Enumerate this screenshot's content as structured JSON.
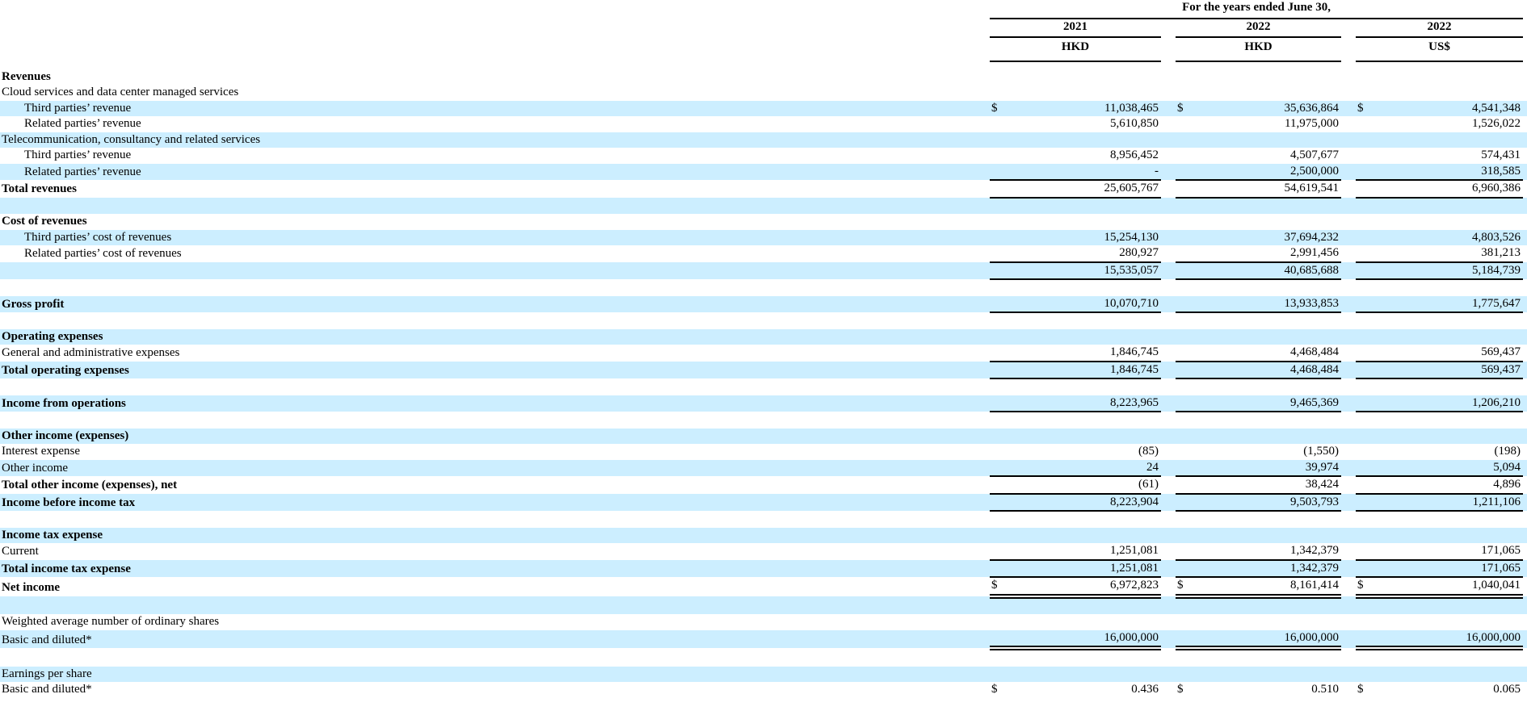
{
  "dollar_sign": "$",
  "colors": {
    "row_highlight": "#cceeff",
    "rule": "#000000",
    "text": "#000000",
    "background": "#ffffff"
  },
  "header": {
    "title": "For the years ended June 30,",
    "columns": [
      {
        "year": "2021",
        "currency": "HKD"
      },
      {
        "year": "2022",
        "currency": "HKD"
      },
      {
        "year": "2022",
        "currency": "US$"
      }
    ]
  },
  "rows": [
    {
      "label": "Revenues",
      "bold": true,
      "shaded": false
    },
    {
      "label": "Cloud services and data center managed services",
      "shaded": false
    },
    {
      "label": "Third parties’ revenue",
      "indent": 1,
      "shaded": true,
      "dollar": true,
      "values": [
        "11,038,465",
        "35,636,864",
        "4,541,348"
      ]
    },
    {
      "label": "Related parties’ revenue",
      "indent": 1,
      "shaded": false,
      "values": [
        "5,610,850",
        "11,975,000",
        "1,526,022"
      ]
    },
    {
      "label": "Telecommunication, consultancy and related services",
      "shaded": true
    },
    {
      "label": "Third parties’ revenue",
      "indent": 1,
      "shaded": false,
      "values": [
        "8,956,452",
        "4,507,677",
        "574,431"
      ]
    },
    {
      "label": "Related parties’ revenue",
      "indent": 1,
      "shaded": true,
      "values": [
        "-",
        "2,500,000",
        "318,585"
      ],
      "underline": "single"
    },
    {
      "label": "Total revenues",
      "bold": true,
      "shaded": false,
      "values": [
        "25,605,767",
        "54,619,541",
        "6,960,386"
      ],
      "underline": "single"
    },
    {
      "label": "",
      "shaded": true
    },
    {
      "label": "Cost of revenues",
      "bold": true,
      "shaded": false
    },
    {
      "label": "Third parties’ cost of revenues",
      "indent": 1,
      "shaded": true,
      "values": [
        "15,254,130",
        "37,694,232",
        "4,803,526"
      ]
    },
    {
      "label": "Related parties’ cost of revenues",
      "indent": 1,
      "shaded": false,
      "values": [
        "280,927",
        "2,991,456",
        "381,213"
      ],
      "underline": "single"
    },
    {
      "label": "",
      "shaded": true,
      "values": [
        "15,535,057",
        "40,685,688",
        "5,184,739"
      ],
      "underline": "single"
    },
    {
      "label": "",
      "shaded": false
    },
    {
      "label": "Gross profit",
      "bold": true,
      "shaded": true,
      "values": [
        "10,070,710",
        "13,933,853",
        "1,775,647"
      ],
      "underline": "single"
    },
    {
      "label": "",
      "shaded": false
    },
    {
      "label": "Operating expenses",
      "bold": true,
      "shaded": true
    },
    {
      "label": "General and administrative expenses",
      "shaded": false,
      "values": [
        "1,846,745",
        "4,468,484",
        "569,437"
      ],
      "underline": "single"
    },
    {
      "label": "Total operating expenses",
      "bold": true,
      "shaded": true,
      "values": [
        "1,846,745",
        "4,468,484",
        "569,437"
      ],
      "underline": "single"
    },
    {
      "label": "",
      "shaded": false
    },
    {
      "label": "Income from operations",
      "bold": true,
      "shaded": true,
      "values": [
        "8,223,965",
        "9,465,369",
        "1,206,210"
      ],
      "underline": "single"
    },
    {
      "label": "",
      "shaded": false
    },
    {
      "label": "Other income (expenses)",
      "bold": true,
      "shaded": true
    },
    {
      "label": "Interest expense",
      "shaded": false,
      "values": [
        "(85)",
        "(1,550)",
        "(198)"
      ]
    },
    {
      "label": "Other income",
      "shaded": true,
      "values": [
        "24",
        "39,974",
        "5,094"
      ],
      "underline": "single"
    },
    {
      "label": "Total other income (expenses), net",
      "bold": true,
      "shaded": false,
      "values": [
        "(61)",
        "38,424",
        "4,896"
      ],
      "underline": "single"
    },
    {
      "label": "Income before income tax",
      "bold": true,
      "shaded": true,
      "values": [
        "8,223,904",
        "9,503,793",
        "1,211,106"
      ],
      "underline": "single"
    },
    {
      "label": "",
      "shaded": false
    },
    {
      "label": "Income tax expense",
      "bold": true,
      "shaded": true
    },
    {
      "label": "Current",
      "shaded": false,
      "values": [
        "1,251,081",
        "1,342,379",
        "171,065"
      ],
      "underline": "single"
    },
    {
      "label": "Total income tax expense",
      "bold": true,
      "shaded": true,
      "values": [
        "1,251,081",
        "1,342,379",
        "171,065"
      ],
      "underline": "single"
    },
    {
      "label": "Net income",
      "bold": true,
      "shaded": false,
      "dollar": true,
      "values": [
        "6,972,823",
        "8,161,414",
        "1,040,041"
      ],
      "underline": "double"
    },
    {
      "label": "",
      "shaded": true
    },
    {
      "label": "Weighted average number of ordinary shares",
      "shaded": false
    },
    {
      "label": "Basic and diluted*",
      "shaded": true,
      "values": [
        "16,000,000",
        "16,000,000",
        "16,000,000"
      ],
      "underline": "double"
    },
    {
      "label": "",
      "shaded": false
    },
    {
      "label": "Earnings per share",
      "shaded": true
    },
    {
      "label": "Basic and diluted*",
      "shaded": false,
      "dollar": true,
      "values": [
        "0.436",
        "0.510",
        "0.065"
      ]
    }
  ]
}
